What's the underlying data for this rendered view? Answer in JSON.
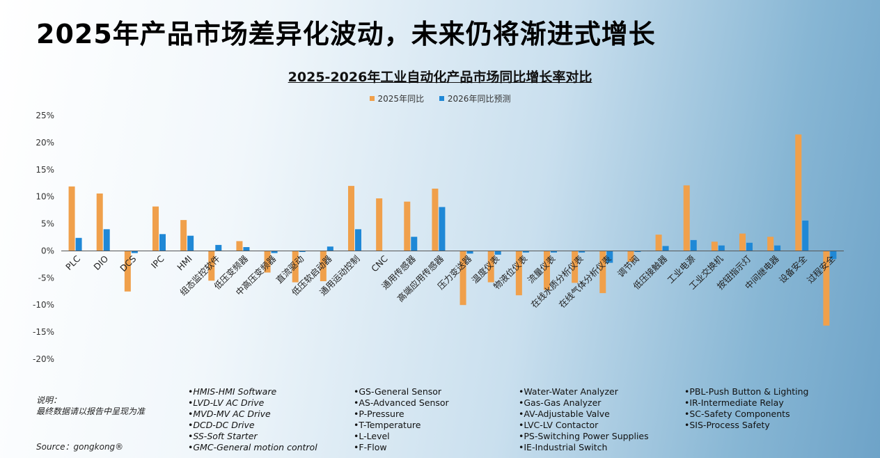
{
  "title": "2025年产品市场差异化波动，未来仍将渐进式增长",
  "chart_data": {
    "type": "bar",
    "title": "2025-2026年工业自动化产品市场同比增长率对比",
    "categories": [
      "PLC",
      "DIO",
      "DCS",
      "IPC",
      "HMI",
      "组态监控软件",
      "低压变频器",
      "中高压变频器",
      "直流驱动",
      "低压软启动器",
      "通用运动控制",
      "CNC",
      "通用传感器",
      "高端应用传感器",
      "压力变送器",
      "温度仪表",
      "物液位仪表",
      "流量仪表",
      "在线水质分析仪表",
      "在线气体分析仪表",
      "调节阀",
      "低压接触器",
      "工业电源",
      "工业交换机",
      "按钮指示灯",
      "中间继电器",
      "设备安全",
      "过程安全"
    ],
    "series": [
      {
        "name": "2025年同比",
        "color": "#f0a04b",
        "values": [
          11.9,
          10.6,
          -7.5,
          8.2,
          5.7,
          -5.5,
          1.8,
          -4.0,
          -5.8,
          -5.6,
          12.0,
          9.7,
          9.1,
          11.5,
          -10.0,
          -5.8,
          -8.2,
          -7.2,
          -5.9,
          -7.8,
          -2.0,
          3.0,
          12.1,
          1.7,
          3.2,
          2.6,
          21.5,
          -13.8
        ]
      },
      {
        "name": "2026年同比预测",
        "color": "#1f88d6",
        "values": [
          2.4,
          4.0,
          -0.4,
          3.1,
          2.8,
          1.1,
          0.7,
          -0.4,
          -0.2,
          0.8,
          4.0,
          0.0,
          2.6,
          8.1,
          -0.5,
          -0.7,
          -0.3,
          -0.3,
          -0.3,
          -2.2,
          -0.2,
          0.9,
          2.0,
          1.0,
          1.5,
          1.0,
          5.6,
          -1.5
        ]
      }
    ],
    "ylim": [
      -20,
      25
    ],
    "yticks": [
      25,
      20,
      15,
      10,
      5,
      0,
      -5,
      -10,
      -15,
      -20
    ],
    "ytick_labels": [
      "25%",
      "20%",
      "15%",
      "10%",
      "5%",
      "0%",
      "-5%",
      "-10%",
      "-15%",
      "-20%"
    ],
    "grid": false,
    "legend": "top-center"
  },
  "note": {
    "label": "说明：",
    "text": "最终数据请以报告中呈现为准"
  },
  "source": "Source：gongkong®",
  "abbreviations": [
    {
      "items": [
        {
          "abbr": "•HMIS-",
          "full": "HMI Software"
        },
        {
          "abbr": "•LVD-",
          "full": "LV AC Drive"
        },
        {
          "abbr": "•MVD-",
          "full": "MV AC Drive"
        },
        {
          "abbr": "•DCD-",
          "full": "DC Drive"
        },
        {
          "abbr": "•SS-",
          "full": "Soft Starter"
        },
        {
          "abbr": "•GMC-",
          "full": "General motion control"
        }
      ]
    },
    {
      "items": [
        {
          "abbr": "•GS-",
          "full": "General Sensor"
        },
        {
          "abbr": "•AS-",
          "full": "Advanced Sensor"
        },
        {
          "abbr": "•P-",
          "full": "Pressure"
        },
        {
          "abbr": "•T-",
          "full": "Temperature"
        },
        {
          "abbr": "•L-",
          "full": "Level"
        },
        {
          "abbr": "•F-",
          "full": "Flow"
        }
      ]
    },
    {
      "items": [
        {
          "abbr": "•Water-",
          "full": "Water Analyzer"
        },
        {
          "abbr": "•Gas-",
          "full": "Gas Analyzer"
        },
        {
          "abbr": "•AV-",
          "full": "Adjustable Valve"
        },
        {
          "abbr": "•LVC-",
          "full": "LV Contactor"
        },
        {
          "abbr": "•PS-",
          "full": "Switching Power Supplies"
        },
        {
          "abbr": "•IE-",
          "full": "Industrial Switch"
        }
      ]
    },
    {
      "items": [
        {
          "abbr": "•PBL-",
          "full": "Push Button & Lighting"
        },
        {
          "abbr": "•IR-",
          "full": "Intermediate Relay"
        },
        {
          "abbr": "•SC-",
          "full": "Safety Components"
        },
        {
          "abbr": "•SIS-",
          "full": "Process Safety"
        }
      ]
    }
  ]
}
